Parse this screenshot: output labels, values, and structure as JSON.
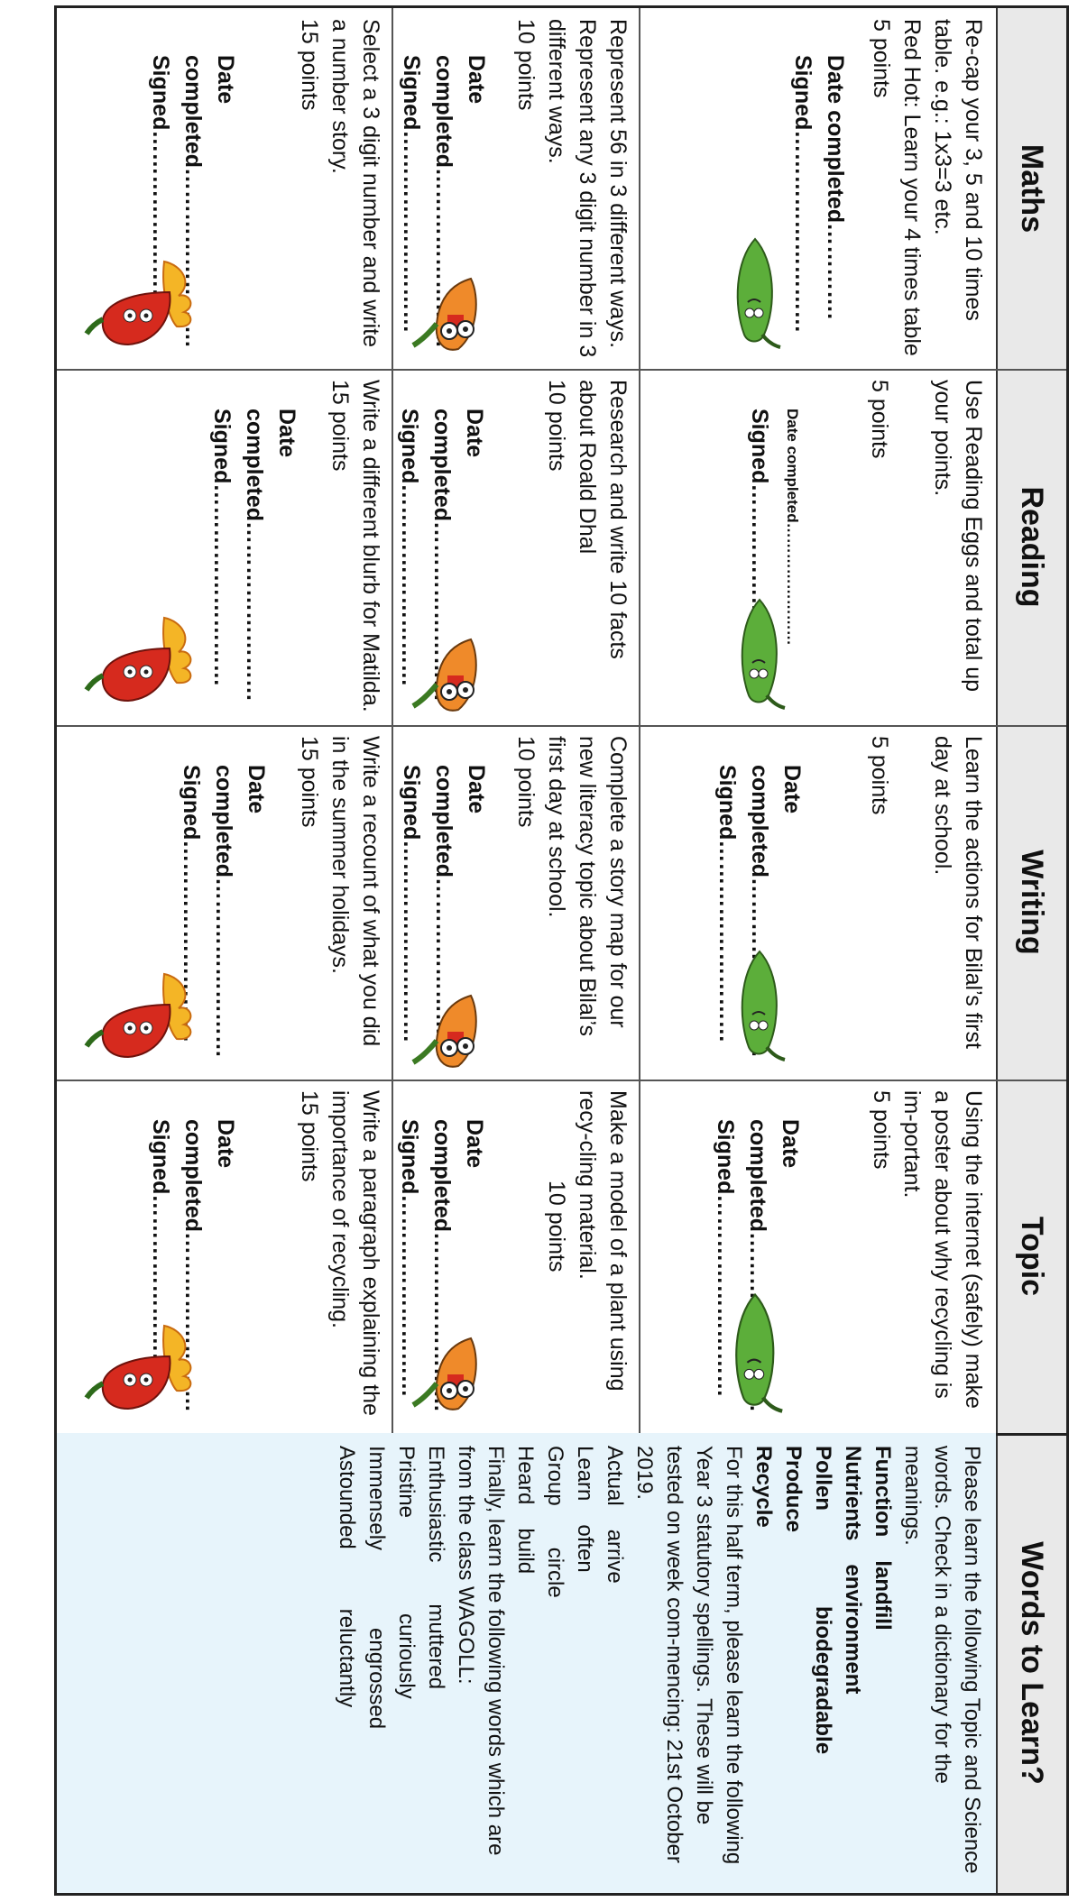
{
  "headers": [
    "Maths",
    "Reading",
    "Writing",
    "Topic",
    "Words to Learn?"
  ],
  "rows": [
    {
      "points": "5 points",
      "tasks": [
        "Re-cap your 3, 5 and 10 times table. e.g.: 1x3=3 etc.",
        "Use Reading Eggs and total up your points.",
        "Learn the actions for Bilal’s first day at school.",
        "Using the internet (safely) make a poster about why recycling is im-portant."
      ],
      "extra": "Red Hot: Learn your 4 times table"
    },
    {
      "points": "10 points",
      "tasks": [
        "Represent 56 in 3 different ways. Represent any 3 digit number in 3 different ways.",
        "Research and write 10 facts about Roald Dhal",
        "Complete a story map for our new literacy topic about Bilal’s first day at school.",
        "Make a model of a plant using recy-cling material."
      ]
    },
    {
      "points": "15 points",
      "tasks": [
        "Select a 3 digit number and write a number story.",
        "Write a different blurb for Matilda.",
        "Write a recount of what you did in the summer holidays.",
        "Write a paragraph explaining the importance of recycling."
      ]
    }
  ],
  "signoff": {
    "date_completed": "Date completed………….",
    "date_completed_long": "Date completed……………………",
    "signed": "Signed………………………"
  },
  "words": {
    "intro": "Please learn the following Topic and Science words. Check in a dictionary for the meanings.",
    "science": [
      [
        "Function",
        "landfill"
      ],
      [
        "Nutrients",
        "environment"
      ],
      [
        "Pollen",
        "biodegradable"
      ],
      [
        "Produce",
        ""
      ],
      [
        "Recycle",
        ""
      ]
    ],
    "spelling_intro": "For this half term, please learn the following Year 3 statutory spellings. These will be tested on week com-mencing: 21st October 2019.",
    "spellings": [
      [
        "Actual",
        "arrive"
      ],
      [
        "Learn",
        "often"
      ],
      [
        "Group",
        "circle"
      ],
      [
        "Heard",
        "build"
      ]
    ],
    "wagoll_intro": "Finally, learn the following words which are from the class WAGOLL:",
    "wagoll": [
      [
        "Enthusiastic",
        "muttered"
      ],
      [
        "Pristine",
        "curiously"
      ],
      [
        "Immensely",
        "engrossed"
      ],
      [
        "Astounded",
        "reluctantly"
      ]
    ]
  },
  "colors": {
    "header_bg": "#e9e9e9",
    "words_bg": "#e7f4fb",
    "green_chili": "#5cae3a",
    "red_chili": "#d62a1e",
    "orange_chili": "#ef8a2a",
    "flame": "#f4b526"
  },
  "icons": [
    "green-chili-icon",
    "orange-chili-icon",
    "red-chili-icon"
  ]
}
